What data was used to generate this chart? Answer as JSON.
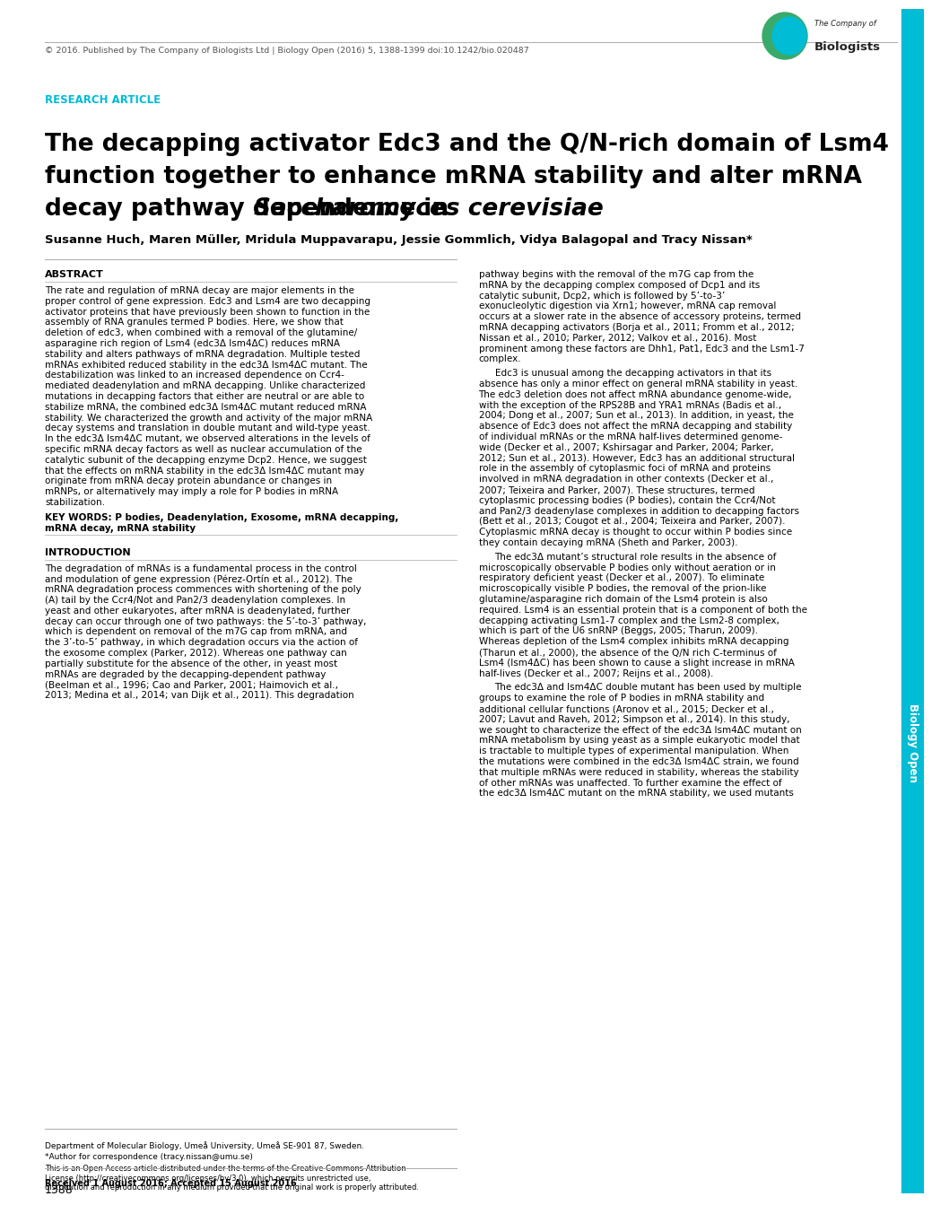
{
  "page_width": 10.2,
  "page_height": 13.2,
  "dpi": 100,
  "background_color": "#ffffff",
  "cyan_bar_color": "#00bcd4",
  "header_text": "© 2016. Published by The Company of Biologists Ltd | Biology Open (2016) 5, 1388-1399 doi:10.1242/bio.020487",
  "research_article_text": "RESEARCH ARTICLE",
  "research_article_color": "#00bcd4",
  "title_line1": "The decapping activator Edc3 and the Q/N-rich domain of Lsm4",
  "title_line2": "function together to enhance mRNA stability and alter mRNA",
  "title_line3_normal": "decay pathway dependence in ",
  "title_line3_italic": "Saccharomyces cerevisiae",
  "authors": "Susanne Huch, Maren Müller, Mridula Muppavarapu, Jessie Gommlich, Vidya Balagopal and Tracy Nissan*",
  "abstract_header": "ABSTRACT",
  "abstract_body_lines": [
    "The rate and regulation of mRNA decay are major elements in the",
    "proper control of gene expression. Edc3 and Lsm4 are two decapping",
    "activator proteins that have previously been shown to function in the",
    "assembly of RNA granules termed P bodies. Here, we show that",
    "deletion of edc3, when combined with a removal of the glutamine/",
    "asparagine rich region of Lsm4 (edc3Δ lsm4ΔC) reduces mRNA",
    "stability and alters pathways of mRNA degradation. Multiple tested",
    "mRNAs exhibited reduced stability in the edc3Δ lsm4ΔC mutant. The",
    "destabilization was linked to an increased dependence on Ccr4-",
    "mediated deadenylation and mRNA decapping. Unlike characterized",
    "mutations in decapping factors that either are neutral or are able to",
    "stabilize mRNA, the combined edc3Δ lsm4ΔC mutant reduced mRNA",
    "stability. We characterized the growth and activity of the major mRNA",
    "decay systems and translation in double mutant and wild-type yeast.",
    "In the edc3Δ lsm4ΔC mutant, we observed alterations in the levels of",
    "specific mRNA decay factors as well as nuclear accumulation of the",
    "catalytic subunit of the decapping enzyme Dcp2. Hence, we suggest",
    "that the effects on mRNA stability in the edc3Δ lsm4ΔC mutant may",
    "originate from mRNA decay protein abundance or changes in",
    "mRNPs, or alternatively may imply a role for P bodies in mRNA",
    "stabilization."
  ],
  "keywords_line1": "KEY WORDS: P bodies, Deadenylation, Exosome, mRNA decapping,",
  "keywords_line2": "mRNA decay, mRNA stability",
  "intro_header": "INTRODUCTION",
  "intro_body_lines": [
    "The degradation of mRNAs is a fundamental process in the control",
    "and modulation of gene expression (Pérez-Ortín et al., 2012). The",
    "mRNA degradation process commences with shortening of the poly",
    "(A) tail by the Ccr4/Not and Pan2/3 deadenylation complexes. In",
    "yeast and other eukaryotes, after mRNA is deadenylated, further",
    "decay can occur through one of two pathways: the 5’-to-3’ pathway,",
    "which is dependent on removal of the m7G cap from mRNA, and",
    "the 3’-to-5’ pathway, in which degradation occurs via the action of",
    "the exosome complex (Parker, 2012). Whereas one pathway can",
    "partially substitute for the absence of the other, in yeast most",
    "mRNAs are degraded by the decapping-dependent pathway",
    "(Beelman et al., 1996; Cao and Parker, 2001; Haimovich et al.,",
    "2013; Medina et al., 2014; van Dijk et al., 2011). This degradation"
  ],
  "right_col_para1_lines": [
    "pathway begins with the removal of the m7G cap from the",
    "mRNA by the decapping complex composed of Dcp1 and its",
    "catalytic subunit, Dcp2, which is followed by 5’-to-3’",
    "exonucleolytic digestion via Xrn1; however, mRNA cap removal",
    "occurs at a slower rate in the absence of accessory proteins, termed",
    "mRNA decapping activators (Borja et al., 2011; Fromm et al., 2012;",
    "Nissan et al., 2010; Parker, 2012; Valkov et al., 2016). Most",
    "prominent among these factors are Dhh1, Pat1, Edc3 and the Lsm1-7",
    "complex."
  ],
  "right_col_para2_lines": [
    "Edc3 is unusual among the decapping activators in that its",
    "absence has only a minor effect on general mRNA stability in yeast.",
    "The edc3 deletion does not affect mRNA abundance genome-wide,",
    "with the exception of the RPS28B and YRA1 mRNAs (Badis et al.,",
    "2004; Dong et al., 2007; Sun et al., 2013). In addition, in yeast, the",
    "absence of Edc3 does not affect the mRNA decapping and stability",
    "of individual mRNAs or the mRNA half-lives determined genome-",
    "wide (Decker et al., 2007; Kshirsagar and Parker, 2004; Parker,",
    "2012; Sun et al., 2013). However, Edc3 has an additional structural",
    "role in the assembly of cytoplasmic foci of mRNA and proteins",
    "involved in mRNA degradation in other contexts (Decker et al.,",
    "2007; Teixeira and Parker, 2007). These structures, termed",
    "cytoplasmic processing bodies (P bodies), contain the Ccr4/Not",
    "and Pan2/3 deadenylase complexes in addition to decapping factors",
    "(Bett et al., 2013; Cougot et al., 2004; Teixeira and Parker, 2007).",
    "Cytoplasmic mRNA decay is thought to occur within P bodies since",
    "they contain decaying mRNA (Sheth and Parker, 2003)."
  ],
  "right_col_para3_lines": [
    "The edc3Δ mutant’s structural role results in the absence of",
    "microscopically observable P bodies only without aeration or in",
    "respiratory deficient yeast (Decker et al., 2007). To eliminate",
    "microscopically visible P bodies, the removal of the prion-like",
    "glutamine/asparagine rich domain of the Lsm4 protein is also",
    "required. Lsm4 is an essential protein that is a component of both the",
    "decapping activating Lsm1-7 complex and the Lsm2-8 complex,",
    "which is part of the U6 snRNP (Beggs, 2005; Tharun, 2009).",
    "Whereas depletion of the Lsm4 complex inhibits mRNA decapping",
    "(Tharun et al., 2000), the absence of the Q/N rich C-terminus of",
    "Lsm4 (lsm4ΔC) has been shown to cause a slight increase in mRNA",
    "half-lives (Decker et al., 2007; Reijns et al., 2008)."
  ],
  "right_col_para4_lines": [
    "The edc3Δ and lsm4ΔC double mutant has been used by multiple",
    "groups to examine the role of P bodies in mRNA stability and",
    "additional cellular functions (Aronov et al., 2015; Decker et al.,",
    "2007; Lavut and Raveh, 2012; Simpson et al., 2014). In this study,",
    "we sought to characterize the effect of the edc3Δ lsm4ΔC mutant on",
    "mRNA metabolism by using yeast as a simple eukaryotic model that",
    "is tractable to multiple types of experimental manipulation. When",
    "the mutations were combined in the edc3Δ lsm4ΔC strain, we found",
    "that multiple mRNAs were reduced in stability, whereas the stability",
    "of other mRNAs was unaffected. To further examine the effect of",
    "the edc3Δ lsm4ΔC mutant on the mRNA stability, we used mutants"
  ],
  "footer_dept": "Department of Molecular Biology, Umeå University, Umeå SE-901 87, Sweden.",
  "footer_author": "*Author for correspondence (tracy.nissan@umu.se)",
  "footer_license1": "This is an Open Access article distributed under the terms of the Creative Commons Attribution",
  "footer_license2": "License (http://creativecommons.org/licenses/by/3.0), which permits unrestricted use,",
  "footer_license3": "distribution and reproduction in any medium provided that the original work is properly attributed.",
  "footer_received": "Received 1 August 2016; Accepted 15 August 2016",
  "page_number": "1388"
}
